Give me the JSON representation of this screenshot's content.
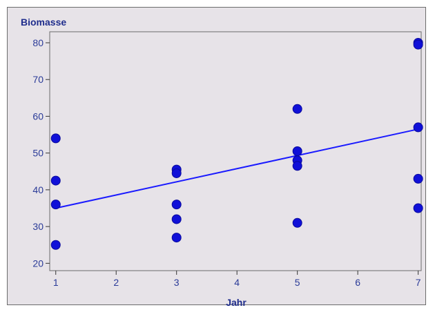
{
  "chart_data": {
    "type": "scatter",
    "title": "",
    "ylabel": "Biomasse",
    "xlabel": "Jahr",
    "xlim": [
      0.9,
      7.05
    ],
    "ylim": [
      18,
      83
    ],
    "xticks": [
      1,
      2,
      3,
      4,
      5,
      6,
      7
    ],
    "yticks": [
      20,
      30,
      40,
      50,
      60,
      70,
      80
    ],
    "grid": false,
    "legend": "none",
    "points": [
      {
        "x": 1,
        "y": 54
      },
      {
        "x": 1,
        "y": 42.5
      },
      {
        "x": 1,
        "y": 36
      },
      {
        "x": 1,
        "y": 25
      },
      {
        "x": 3,
        "y": 45.5
      },
      {
        "x": 3,
        "y": 44.5
      },
      {
        "x": 3,
        "y": 36
      },
      {
        "x": 3,
        "y": 32
      },
      {
        "x": 3,
        "y": 27
      },
      {
        "x": 5,
        "y": 62
      },
      {
        "x": 5,
        "y": 50.5
      },
      {
        "x": 5,
        "y": 48
      },
      {
        "x": 5,
        "y": 46.5
      },
      {
        "x": 5,
        "y": 31
      },
      {
        "x": 7,
        "y": 80
      },
      {
        "x": 7,
        "y": 79.5
      },
      {
        "x": 7,
        "y": 57
      },
      {
        "x": 7,
        "y": 43
      },
      {
        "x": 7,
        "y": 35
      }
    ],
    "regression_line": {
      "x": [
        1,
        7
      ],
      "y": [
        35,
        56.5
      ]
    },
    "colors": {
      "points": "#1010d8",
      "line": "#1a1aff",
      "background": "#e7e3e8",
      "text": "#2b3b98"
    }
  }
}
